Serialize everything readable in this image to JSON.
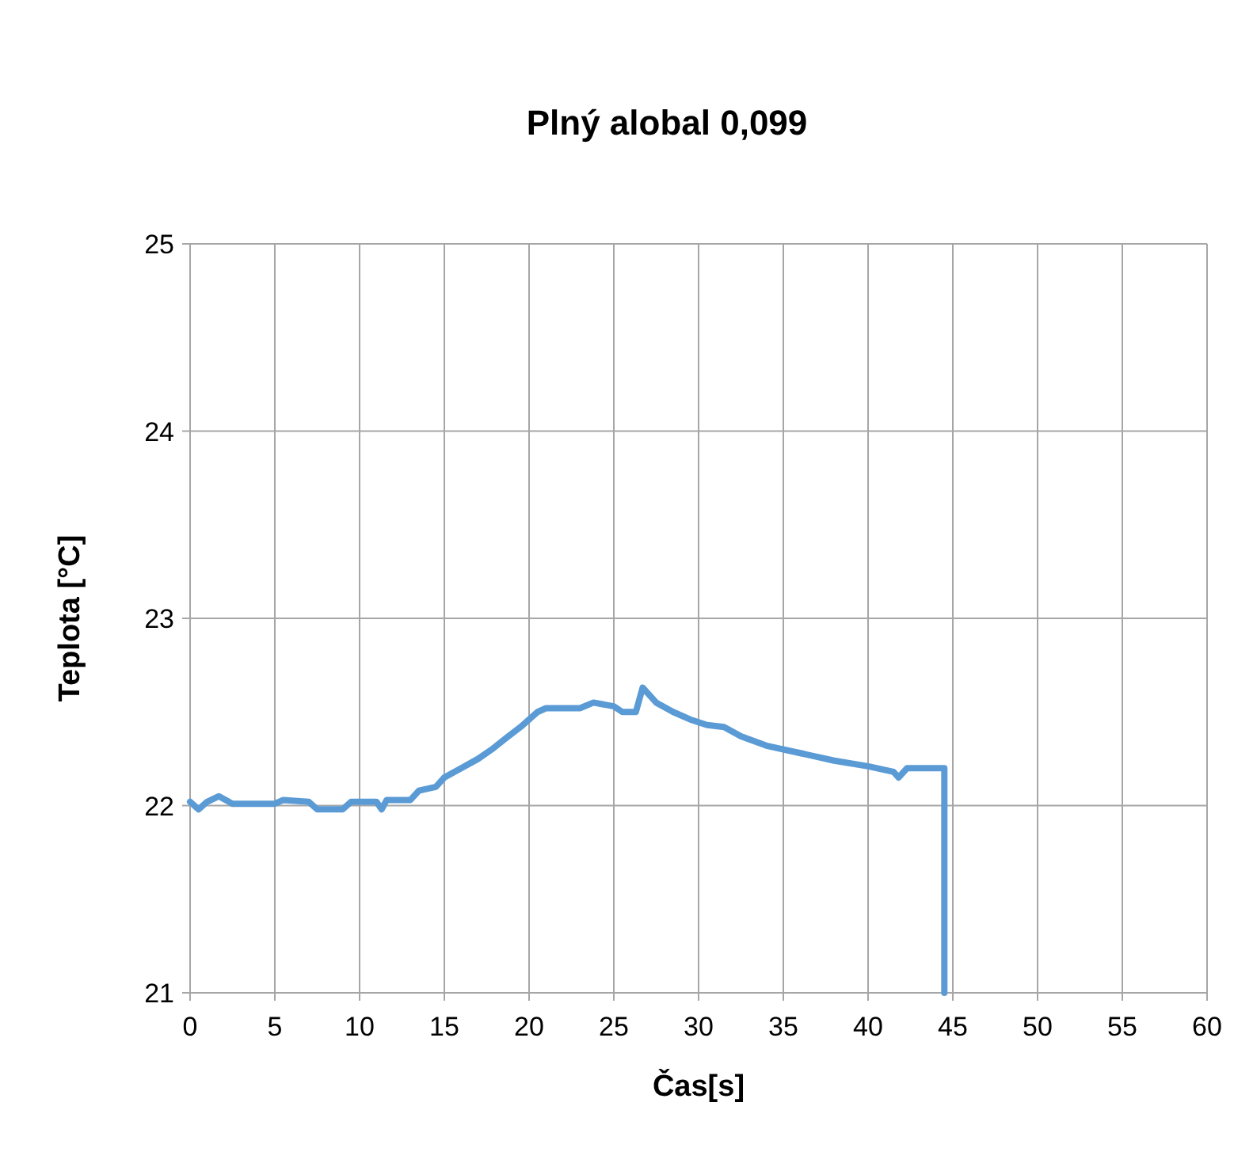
{
  "chart_data": {
    "type": "line",
    "title": "Plný alobal 0,099",
    "xlabel": "Čas[s]",
    "ylabel": "Teplota [°C]",
    "xlim": [
      0,
      60
    ],
    "xticks": [
      0,
      5,
      10,
      15,
      20,
      25,
      30,
      35,
      40,
      45,
      50,
      55,
      60
    ],
    "ylim": [
      21,
      25
    ],
    "yticks": [
      21,
      22,
      23,
      24,
      25
    ],
    "grid": true,
    "marker": "none",
    "line_style": "solid",
    "series": [
      {
        "color": "#5b9bd5",
        "x": [
          0,
          0.5,
          1,
          1.7,
          2.5,
          5,
          5.5,
          7,
          7.5,
          9,
          9.5,
          11,
          11.3,
          11.6,
          13,
          13.5,
          14.5,
          15,
          16,
          17,
          17.8,
          18.5,
          19.5,
          20.5,
          21,
          23,
          23.8,
          25,
          25.5,
          26.3,
          26.7,
          27.5,
          28.5,
          29.5,
          30.5,
          31.5,
          32.5,
          34,
          36,
          38,
          40,
          41.5,
          41.8,
          42.3,
          44.5,
          44.5
        ],
        "values": [
          22.02,
          21.98,
          22.02,
          22.05,
          22.01,
          22.01,
          22.03,
          22.02,
          21.98,
          21.98,
          22.02,
          22.02,
          21.98,
          22.03,
          22.03,
          22.08,
          22.1,
          22.15,
          22.2,
          22.25,
          22.3,
          22.35,
          22.42,
          22.5,
          22.52,
          22.52,
          22.55,
          22.53,
          22.5,
          22.5,
          22.63,
          22.55,
          22.5,
          22.46,
          22.43,
          22.42,
          22.37,
          22.32,
          22.28,
          22.24,
          22.21,
          22.18,
          22.15,
          22.2,
          22.2,
          21
        ]
      }
    ]
  }
}
